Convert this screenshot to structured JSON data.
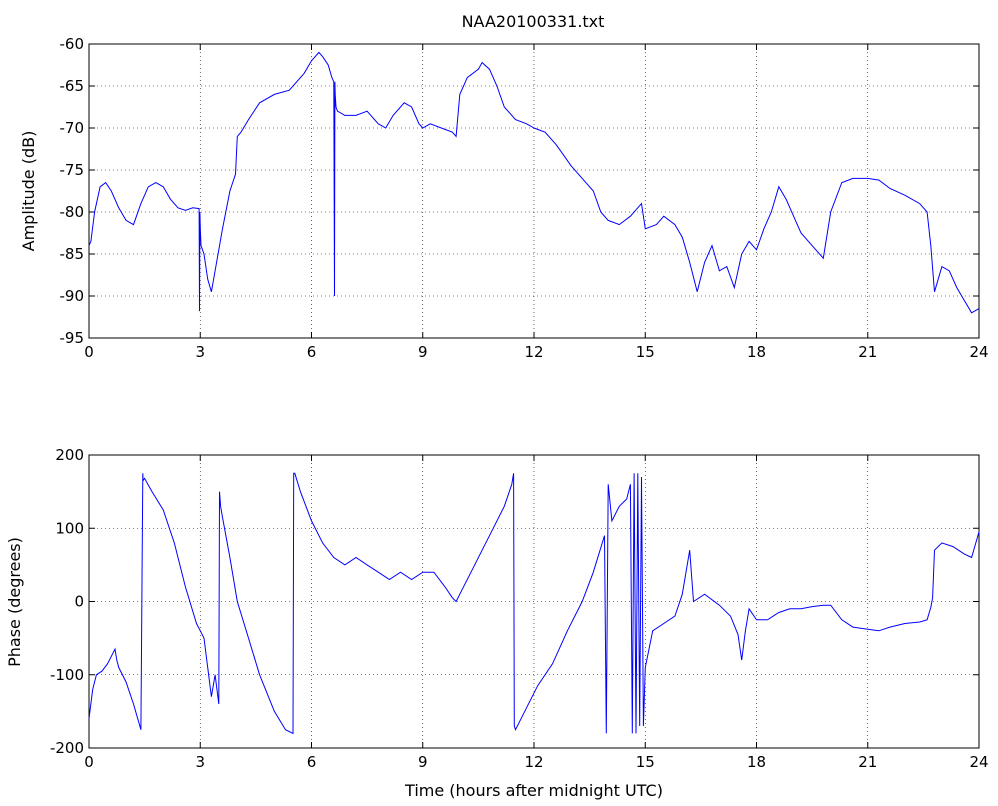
{
  "figure_title": "NAA20100331.txt",
  "chart_data": [
    {
      "type": "line",
      "title": "NAA20100331.txt",
      "xlabel": "",
      "ylabel": "Amplitude (dB)",
      "xlim": [
        0,
        24
      ],
      "ylim": [
        -95,
        -60
      ],
      "xticks": [
        0,
        3,
        6,
        9,
        12,
        15,
        18,
        21,
        24
      ],
      "yticks": [
        -95,
        -90,
        -85,
        -80,
        -75,
        -70,
        -65,
        -60
      ],
      "xtick_labels": [
        "0",
        "3",
        "6",
        "9",
        "12",
        "15",
        "18",
        "21",
        "24"
      ],
      "ytick_labels": [
        "-95",
        "-90",
        "-85",
        "-80",
        "-75",
        "-70",
        "-65",
        "-60"
      ],
      "grid": true,
      "color": "#0000ff",
      "series": [
        {
          "x": [
            0,
            0.05,
            0.15,
            0.3,
            0.45,
            0.6,
            0.8,
            1.0,
            1.2,
            1.4,
            1.6,
            1.8,
            2.0,
            2.2,
            2.4,
            2.6,
            2.8,
            2.97,
            2.98,
            2.99,
            3.0,
            3.02,
            3.1,
            3.2,
            3.3,
            3.4,
            3.6,
            3.8,
            3.95,
            4.0,
            4.1,
            4.3,
            4.6,
            5.0,
            5.4,
            5.8,
            6.0,
            6.2,
            6.3,
            6.45,
            6.55,
            6.6,
            6.62,
            6.63,
            6.64,
            6.66,
            6.7,
            6.9,
            7.2,
            7.5,
            7.8,
            8.0,
            8.2,
            8.5,
            8.7,
            8.9,
            9.0,
            9.2,
            9.5,
            9.8,
            9.9,
            10.0,
            10.2,
            10.5,
            10.6,
            10.8,
            11.0,
            11.2,
            11.5,
            11.8,
            12.0,
            12.3,
            12.6,
            13.0,
            13.3,
            13.6,
            13.8,
            14.0,
            14.3,
            14.6,
            14.9,
            15.0,
            15.3,
            15.5,
            15.8,
            16.0,
            16.2,
            16.4,
            16.6,
            16.8,
            17.0,
            17.2,
            17.4,
            17.6,
            17.8,
            18.0,
            18.2,
            18.4,
            18.6,
            18.8,
            19.0,
            19.2,
            19.5,
            19.8,
            20.0,
            20.3,
            20.6,
            21.0,
            21.3,
            21.6,
            22.0,
            22.4,
            22.6,
            22.7,
            22.8,
            23.0,
            23.2,
            23.4,
            23.6,
            23.8,
            24.0
          ],
          "values": [
            -84,
            -83.5,
            -80,
            -77,
            -76.5,
            -77.5,
            -79.5,
            -81,
            -81.5,
            -79,
            -77,
            -76.5,
            -77,
            -78.5,
            -79.5,
            -79.8,
            -79.5,
            -79.6,
            -91.8,
            -80,
            -82,
            -84,
            -85,
            -88,
            -89.5,
            -87,
            -82,
            -77.5,
            -75.5,
            -71,
            -70.5,
            -69,
            -67,
            -66,
            -65.5,
            -63.5,
            -62,
            -61,
            -61.5,
            -62.5,
            -64,
            -64.5,
            -90,
            -64.5,
            -66,
            -67.5,
            -68,
            -68.5,
            -68.5,
            -68,
            -69.5,
            -70,
            -68.5,
            -67,
            -67.5,
            -69.5,
            -70,
            -69.5,
            -70,
            -70.5,
            -71,
            -66,
            -64,
            -63,
            -62.2,
            -63,
            -65,
            -67.5,
            -69,
            -69.5,
            -70,
            -70.5,
            -72,
            -74.5,
            -76,
            -77.5,
            -80,
            -81,
            -81.5,
            -80.5,
            -79,
            -82,
            -81.5,
            -80.5,
            -81.5,
            -83,
            -86,
            -89.5,
            -86,
            -84,
            -87,
            -86.5,
            -89,
            -85,
            -83.5,
            -84.5,
            -82,
            -80,
            -77,
            -78.5,
            -80.5,
            -82.5,
            -84,
            -85.5,
            -80,
            -76.5,
            -76,
            -76,
            -76.2,
            -77.2,
            -78,
            -79,
            -80,
            -84,
            -89.5,
            -86.5,
            -87,
            -89,
            -90.5,
            -92,
            -91.5
          ]
        }
      ]
    },
    {
      "type": "line",
      "title": "",
      "xlabel": "Time (hours after midnight UTC)",
      "ylabel": "Phase (degrees)",
      "xlim": [
        0,
        24
      ],
      "ylim": [
        -200,
        200
      ],
      "xticks": [
        0,
        3,
        6,
        9,
        12,
        15,
        18,
        21,
        24
      ],
      "yticks": [
        -200,
        -100,
        0,
        100,
        200
      ],
      "xtick_labels": [
        "0",
        "3",
        "6",
        "9",
        "12",
        "15",
        "18",
        "21",
        "24"
      ],
      "ytick_labels": [
        "-200",
        "-100",
        "0",
        "100",
        "200"
      ],
      "grid": true,
      "color": "#0000ff",
      "series": [
        {
          "x": [
            0,
            0.1,
            0.2,
            0.35,
            0.5,
            0.65,
            0.7,
            0.75,
            0.8,
            1.0,
            1.2,
            1.4,
            1.45,
            1.46,
            1.5,
            1.7,
            2.0,
            2.3,
            2.6,
            2.9,
            3.0,
            3.1,
            3.2,
            3.3,
            3.4,
            3.5,
            3.52,
            3.55,
            3.6,
            3.8,
            4.0,
            4.3,
            4.6,
            5.0,
            5.3,
            5.5,
            5.52,
            5.55,
            5.7,
            6.0,
            6.3,
            6.6,
            6.9,
            7.2,
            7.5,
            7.8,
            8.1,
            8.4,
            8.7,
            9.0,
            9.3,
            9.6,
            9.8,
            9.9,
            10.0,
            10.3,
            10.6,
            10.9,
            11.2,
            11.4,
            11.45,
            11.47,
            11.5,
            11.8,
            12.1,
            12.5,
            12.9,
            13.3,
            13.6,
            13.9,
            13.95,
            14.0,
            14.1,
            14.3,
            14.5,
            14.6,
            14.65,
            14.7,
            14.75,
            14.8,
            14.85,
            14.9,
            14.95,
            15.0,
            15.2,
            15.5,
            15.8,
            16.0,
            16.1,
            16.2,
            16.3,
            16.6,
            17.0,
            17.3,
            17.5,
            17.6,
            17.7,
            17.8,
            18.0,
            18.3,
            18.6,
            18.9,
            19.2,
            19.5,
            19.8,
            20.0,
            20.3,
            20.6,
            21.0,
            21.3,
            21.6,
            22.0,
            22.4,
            22.6,
            22.7,
            22.75,
            22.8,
            23.0,
            23.3,
            23.6,
            23.8,
            24.0
          ],
          "values": [
            -160,
            -120,
            -100,
            -95,
            -85,
            -70,
            -65,
            -80,
            -90,
            -110,
            -140,
            -175,
            175,
            165,
            168,
            150,
            125,
            80,
            20,
            -30,
            -40,
            -50,
            -90,
            -130,
            -100,
            -140,
            150,
            130,
            115,
            60,
            0,
            -50,
            -100,
            -150,
            -175,
            -180,
            175,
            175,
            150,
            110,
            80,
            60,
            50,
            60,
            50,
            40,
            30,
            40,
            30,
            40,
            40,
            20,
            5,
            0,
            10,
            40,
            70,
            100,
            130,
            160,
            175,
            -170,
            -175,
            -145,
            -115,
            -85,
            -40,
            0,
            40,
            90,
            -180,
            160,
            110,
            130,
            140,
            160,
            -180,
            175,
            -180,
            175,
            -170,
            170,
            -170,
            -90,
            -40,
            -30,
            -20,
            10,
            40,
            70,
            0,
            10,
            -5,
            -20,
            -45,
            -80,
            -40,
            -10,
            -25,
            -25,
            -15,
            -10,
            -10,
            -7,
            -5,
            -5,
            -25,
            -35,
            -38,
            -40,
            -35,
            -30,
            -28,
            -25,
            -8,
            5,
            70,
            80,
            75,
            65,
            60,
            95
          ]
        }
      ]
    }
  ]
}
